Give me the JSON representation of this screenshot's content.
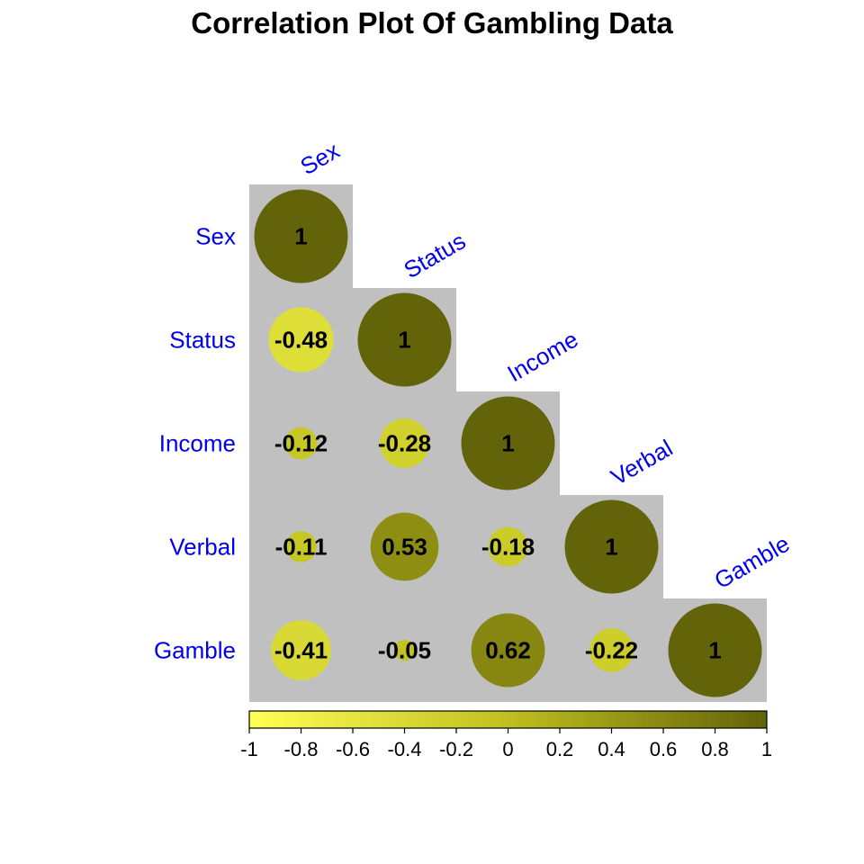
{
  "chart_data": {
    "type": "heatmap",
    "title": "Correlation Plot Of Gambling Data",
    "variables": [
      "Sex",
      "Status",
      "Income",
      "Verbal",
      "Gamble"
    ],
    "matrix": [
      [
        1,
        -0.48,
        -0.12,
        -0.11,
        -0.41
      ],
      [
        -0.48,
        1,
        -0.28,
        0.53,
        -0.05
      ],
      [
        -0.12,
        -0.28,
        1,
        -0.18,
        0.62
      ],
      [
        -0.11,
        0.53,
        -0.18,
        1,
        -0.22
      ],
      [
        -0.41,
        -0.05,
        0.62,
        -0.22,
        1
      ]
    ],
    "value_labels": [
      [
        "1",
        "",
        "",
        "",
        ""
      ],
      [
        "-0.48",
        "1",
        "",
        "",
        ""
      ],
      [
        "-0.12",
        "-0.28",
        "1",
        "",
        ""
      ],
      [
        "-0.11",
        "0.53",
        "-0.18",
        "1",
        ""
      ],
      [
        "-0.41",
        "-0.05",
        "0.62",
        "-0.22",
        "1"
      ]
    ],
    "shape": "lower-triangle circles",
    "colorbar": {
      "range": [
        -1,
        1
      ],
      "tick_labels": [
        "-1",
        "-0.8",
        "-0.6",
        "-0.4",
        "-0.2",
        "0",
        "0.2",
        "0.4",
        "0.6",
        "0.8",
        "1"
      ],
      "low_color": "#ffff55",
      "mid_color": "#bfbf1f",
      "high_color": "#636309",
      "position": "bottom"
    },
    "background_color": "#c0c0c0",
    "label_color": "#0000ee"
  }
}
